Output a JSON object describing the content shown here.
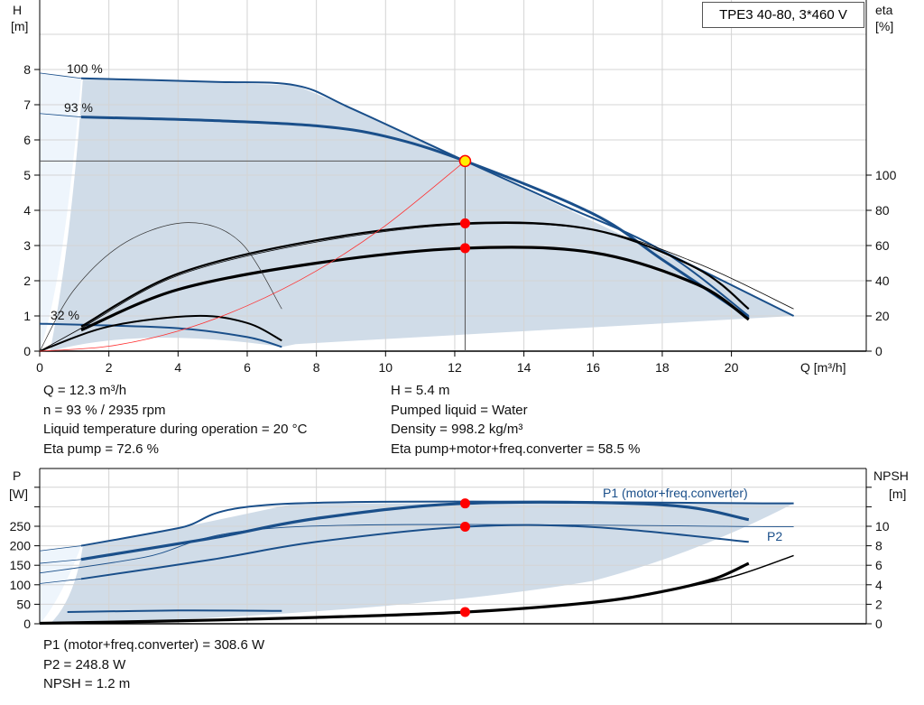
{
  "title": "TPE3 40-80, 3*460 V",
  "chart_data": [
    {
      "type": "line",
      "name": "performance",
      "xlabel": "Q [m³/h]",
      "ylabel_left": "H",
      "ylabel_left_unit": "[m]",
      "ylabel_right": "eta",
      "ylabel_right_unit": "[%]",
      "xlim": [
        0,
        22.5
      ],
      "ylim_left": [
        0,
        9.2
      ],
      "ylim_right": [
        0,
        100
      ],
      "x_ticks": [
        0,
        2,
        4,
        6,
        8,
        10,
        12,
        14,
        16,
        18,
        20
      ],
      "y_ticks_left": [
        0,
        1,
        2,
        3,
        4,
        5,
        6,
        7,
        8
      ],
      "y_ticks_right": [
        0,
        20,
        40,
        60,
        80,
        100
      ],
      "grid": true,
      "curve_labels": [
        "100 %",
        "93 %",
        "32 %"
      ],
      "series": [
        {
          "id": "h-100",
          "axis": "left",
          "color": "#1a4f8a",
          "width": 2,
          "points": [
            [
              1.2,
              7.75
            ],
            [
              5,
              7.65
            ],
            [
              7.4,
              7.55
            ],
            [
              9,
              6.9
            ],
            [
              12.3,
              5.4
            ],
            [
              15,
              4.2
            ],
            [
              18,
              2.85
            ],
            [
              20.5,
              1.0
            ]
          ]
        },
        {
          "id": "h-100-ext",
          "axis": "left",
          "color": "#1a4f8a",
          "width": 0.8,
          "points": [
            [
              0,
              7.9
            ],
            [
              1.2,
              7.75
            ]
          ]
        },
        {
          "id": "h-93",
          "axis": "left",
          "color": "#1a4f8a",
          "width": 3,
          "points": [
            [
              1.2,
              6.65
            ],
            [
              5,
              6.55
            ],
            [
              8,
              6.4
            ],
            [
              10,
              6.1
            ],
            [
              12.3,
              5.4
            ],
            [
              16,
              3.9
            ],
            [
              18,
              2.6
            ],
            [
              20.5,
              0.95
            ]
          ]
        },
        {
          "id": "h-93-ext",
          "axis": "left",
          "color": "#1a4f8a",
          "width": 0.8,
          "points": [
            [
              0,
              6.75
            ],
            [
              1.2,
              6.65
            ]
          ]
        },
        {
          "id": "h-max-tail",
          "axis": "left",
          "color": "#1a4f8a",
          "width": 2,
          "points": [
            [
              18,
              2.85
            ],
            [
              21.8,
              1.0
            ]
          ]
        },
        {
          "id": "h-32",
          "axis": "left",
          "color": "#1a4f8a",
          "width": 2,
          "points": [
            [
              0,
              0.78
            ],
            [
              1.2,
              0.75
            ],
            [
              4,
              0.65
            ],
            [
              6,
              0.4
            ],
            [
              7,
              0.12
            ]
          ]
        },
        {
          "id": "eta-pump",
          "axis": "right",
          "color": "#000",
          "width": 2.2,
          "points": [
            [
              1.2,
              14
            ],
            [
              4,
              44
            ],
            [
              8,
              63
            ],
            [
              12.3,
              72.6
            ],
            [
              16,
              69
            ],
            [
              19,
              47
            ],
            [
              20.5,
              24
            ]
          ]
        },
        {
          "id": "eta-pump-thin",
          "axis": "right",
          "color": "#000",
          "width": 0.8,
          "points": [
            [
              0,
              0
            ],
            [
              1.2,
              13
            ],
            [
              4,
              43
            ],
            [
              8,
              62
            ],
            [
              12.3,
              72
            ],
            [
              16,
              69
            ],
            [
              19,
              50
            ],
            [
              21.8,
              24
            ]
          ]
        },
        {
          "id": "eta-total",
          "axis": "right",
          "color": "#000",
          "width": 3.2,
          "points": [
            [
              1.2,
              12
            ],
            [
              4,
              35
            ],
            [
              8,
              50
            ],
            [
              12.3,
              58.5
            ],
            [
              16,
              56
            ],
            [
              19,
              38
            ],
            [
              20.5,
              18
            ]
          ]
        },
        {
          "id": "eta-32",
          "axis": "right",
          "color": "#000",
          "width": 2,
          "points": [
            [
              0,
              0
            ],
            [
              2,
              14
            ],
            [
              4.5,
              20
            ],
            [
              6,
              16
            ],
            [
              7,
              6
            ]
          ]
        },
        {
          "id": "eta-low-arc",
          "axis": "right",
          "color": "#333",
          "width": 0.7,
          "points": [
            [
              0,
              0
            ],
            [
              1,
              35
            ],
            [
              2.5,
              62
            ],
            [
              4.3,
              73
            ],
            [
              5.8,
              62
            ],
            [
              7,
              24
            ]
          ]
        },
        {
          "id": "system-curve",
          "axis": "left",
          "color": "#ff3030",
          "width": 0.8,
          "points": [
            [
              0,
              0
            ],
            [
              2,
              0.14
            ],
            [
              4,
              0.57
            ],
            [
              6,
              1.29
            ],
            [
              8,
              2.28
            ],
            [
              10,
              3.57
            ],
            [
              12.3,
              5.4
            ]
          ]
        }
      ],
      "duty_point": {
        "Q": 12.3,
        "H": 5.4,
        "eta_pump": 72.6,
        "eta_total": 58.5
      }
    },
    {
      "type": "line",
      "name": "power-npsh",
      "ylabel_left": "P",
      "ylabel_left_unit": "[W]",
      "ylabel_right": "NPSH",
      "ylabel_right_unit": "[m]",
      "xlim": [
        0,
        22.5
      ],
      "ylim_left": [
        0,
        400
      ],
      "ylim_right": [
        0,
        16
      ],
      "y_ticks_left": [
        0,
        50,
        100,
        150,
        200,
        250
      ],
      "y_ticks_right": [
        0,
        2,
        4,
        6,
        8,
        10
      ],
      "series_labels": [
        "P1 (motor+freq.converter)",
        "P2"
      ],
      "series": [
        {
          "id": "p1-max",
          "axis": "left",
          "color": "#1a4f8a",
          "width": 2,
          "points": [
            [
              1.2,
              200
            ],
            [
              4,
              245
            ],
            [
              7.4,
              308.6
            ],
            [
              21.8,
              308.6
            ]
          ]
        },
        {
          "id": "p1-max-ext",
          "axis": "left",
          "color": "#1a4f8a",
          "width": 0.8,
          "points": [
            [
              0,
              187
            ],
            [
              1.2,
              200
            ]
          ]
        },
        {
          "id": "p1-93",
          "axis": "left",
          "color": "#1a4f8a",
          "width": 3.2,
          "points": [
            [
              1.2,
              165
            ],
            [
              5,
              220
            ],
            [
              8,
              270
            ],
            [
              12.3,
              308.6
            ],
            [
              18,
              305
            ],
            [
              20.5,
              267
            ]
          ]
        },
        {
          "id": "p1-93-ext",
          "axis": "left",
          "color": "#1a4f8a",
          "width": 0.8,
          "points": [
            [
              0,
              155
            ],
            [
              1.2,
              165
            ]
          ]
        },
        {
          "id": "p2-max",
          "axis": "left",
          "color": "#1a4f8a",
          "width": 0.9,
          "points": [
            [
              0,
              130
            ],
            [
              3,
              170
            ],
            [
              7.4,
              248.8
            ],
            [
              21.8,
              248.8
            ]
          ]
        },
        {
          "id": "p2-93",
          "axis": "left",
          "color": "#1a4f8a",
          "width": 2,
          "points": [
            [
              1.2,
              115
            ],
            [
              5,
              165
            ],
            [
              8,
              210
            ],
            [
              12.3,
              248.8
            ],
            [
              16,
              248
            ],
            [
              20.5,
              210
            ]
          ]
        },
        {
          "id": "p2-93-ext",
          "axis": "left",
          "color": "#1a4f8a",
          "width": 0.8,
          "points": [
            [
              0,
              103
            ],
            [
              1.2,
              115
            ]
          ]
        },
        {
          "id": "p1-32",
          "axis": "left",
          "color": "#1a4f8a",
          "width": 2,
          "points": [
            [
              0.8,
              30
            ],
            [
              4,
              34
            ],
            [
              7,
              33
            ]
          ]
        },
        {
          "id": "npsh",
          "axis": "right",
          "color": "#000",
          "width": 3.2,
          "points": [
            [
              0,
              0.05
            ],
            [
              4,
              0.3
            ],
            [
              8,
              0.65
            ],
            [
              12.3,
              1.2
            ],
            [
              16,
              2.2
            ],
            [
              18,
              3.3
            ],
            [
              19.5,
              4.6
            ],
            [
              20.5,
              6.2
            ]
          ]
        },
        {
          "id": "npsh-thin",
          "axis": "right",
          "color": "#000",
          "width": 1.5,
          "points": [
            [
              18,
              3.3
            ],
            [
              20,
              4.8
            ],
            [
              21.8,
              7.0
            ]
          ]
        }
      ],
      "duty_points": {
        "P1": 308.6,
        "P2": 248.8,
        "NPSH": 1.2
      }
    }
  ],
  "readout_top": {
    "left": [
      "Q = 12.3 m³/h",
      "n = 93 % / 2935 rpm",
      "Liquid temperature during operation = 20 °C",
      "Eta pump = 72.6 %"
    ],
    "right": [
      "H = 5.4 m",
      "Pumped liquid = Water",
      "Density = 998.2 kg/m³",
      "Eta pump+motor+freq.converter = 58.5 %"
    ]
  },
  "readout_bottom": [
    "P1 (motor+freq.converter) = 308.6 W",
    "P2 = 248.8 W",
    "NPSH = 1.2 m"
  ],
  "colors": {
    "curve": "#1a4f8a",
    "fill": "#d0dce8",
    "fill_light": "#eef5fc",
    "duty": "#ff0000",
    "duty_main": "#ffee00"
  }
}
